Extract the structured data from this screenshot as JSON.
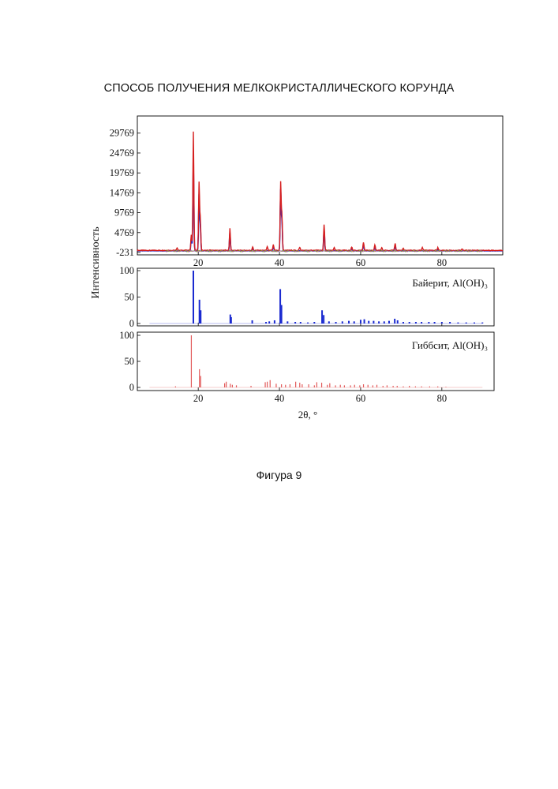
{
  "document": {
    "title": "СПОСОБ ПОЛУЧЕНИЯ МЕЛКОКРИСТАЛЛИЧЕСКОГО КОРУНДА",
    "caption": "Фигура 9"
  },
  "chart_data": {
    "type": "line",
    "xlabel": "2θ, °",
    "ylabel": "Интенсивность",
    "xlim": [
      5,
      95
    ],
    "x_ticks": [
      20,
      40,
      60,
      80
    ],
    "colors": {
      "measured": "#d62020",
      "bayerite": "#1a2ad0",
      "gibbsite": "#e25a5a",
      "minor": [
        "#2a9a2a",
        "#e0a020",
        "#8a3ab0"
      ]
    },
    "panels": [
      {
        "id": "measured",
        "ylim": [
          -231,
          31500
        ],
        "y_ticks": [
          -231,
          4769,
          9769,
          14769,
          19769,
          24769,
          29769
        ],
        "series": [
          {
            "role": "measured",
            "color": "#d62020",
            "baseline": 300,
            "peaks": [
              [
                14.8,
                700
              ],
              [
                18.3,
                4000
              ],
              [
                18.8,
                29800
              ],
              [
                20.2,
                17000
              ],
              [
                20.5,
                8000
              ],
              [
                27.8,
                5500
              ],
              [
                33.4,
                900
              ],
              [
                37.0,
                900
              ],
              [
                38.5,
                1400
              ],
              [
                40.3,
                17000
              ],
              [
                40.6,
                9000
              ],
              [
                45.0,
                800
              ],
              [
                51.0,
                6500
              ],
              [
                53.5,
                700
              ],
              [
                57.8,
                900
              ],
              [
                60.7,
                2000
              ],
              [
                63.5,
                1400
              ],
              [
                65.2,
                700
              ],
              [
                68.5,
                1800
              ],
              [
                70.5,
                500
              ],
              [
                75.2,
                700
              ],
              [
                79.0,
                700
              ],
              [
                85.0,
                400
              ]
            ]
          },
          {
            "role": "fit",
            "color": "#1a2ad0",
            "baseline": 200,
            "peaks": [
              [
                18.3,
                3200
              ],
              [
                18.8,
                22500
              ],
              [
                20.2,
                14000
              ],
              [
                20.5,
                6200
              ],
              [
                27.8,
                4500
              ],
              [
                33.4,
                600
              ],
              [
                38.5,
                1000
              ],
              [
                40.3,
                15200
              ],
              [
                40.6,
                7500
              ],
              [
                51.0,
                5200
              ],
              [
                57.8,
                600
              ],
              [
                60.7,
                1500
              ],
              [
                63.5,
                1000
              ],
              [
                68.5,
                1300
              ],
              [
                79.0,
                400
              ]
            ]
          }
        ]
      },
      {
        "id": "bayerite",
        "label": "Байерит, Al(OH)₃",
        "ylim": [
          0,
          100
        ],
        "y_ticks": [
          0,
          50,
          100
        ],
        "color": "#1a2ad0",
        "sticks": [
          [
            18.8,
            100
          ],
          [
            20.3,
            45
          ],
          [
            20.6,
            25
          ],
          [
            27.9,
            17
          ],
          [
            28.1,
            12
          ],
          [
            33.3,
            6
          ],
          [
            36.7,
            3
          ],
          [
            37.5,
            4
          ],
          [
            38.8,
            6
          ],
          [
            40.2,
            65
          ],
          [
            40.5,
            35
          ],
          [
            42.0,
            4
          ],
          [
            43.9,
            3
          ],
          [
            45.2,
            3
          ],
          [
            47.0,
            2
          ],
          [
            48.6,
            3
          ],
          [
            50.5,
            25
          ],
          [
            50.9,
            16
          ],
          [
            52.2,
            4
          ],
          [
            53.9,
            3
          ],
          [
            55.5,
            4
          ],
          [
            57.1,
            5
          ],
          [
            58.4,
            4
          ],
          [
            60.0,
            7
          ],
          [
            60.9,
            8
          ],
          [
            62.0,
            5
          ],
          [
            63.2,
            5
          ],
          [
            64.5,
            4
          ],
          [
            65.8,
            4
          ],
          [
            67.0,
            5
          ],
          [
            68.4,
            9
          ],
          [
            69.1,
            6
          ],
          [
            70.5,
            3
          ],
          [
            72.0,
            3
          ],
          [
            73.6,
            3
          ],
          [
            75.0,
            3
          ],
          [
            76.8,
            3
          ],
          [
            78.2,
            3
          ],
          [
            80.0,
            3
          ],
          [
            82.0,
            3
          ],
          [
            84.0,
            2
          ],
          [
            86.0,
            2
          ],
          [
            88.0,
            2
          ],
          [
            90.0,
            2
          ]
        ]
      },
      {
        "id": "gibbsite",
        "label": "Гиббсит, Al(OH)₃",
        "ylim": [
          0,
          100
        ],
        "y_ticks": [
          0,
          50,
          100
        ],
        "color": "#e25a5a",
        "sticks": [
          [
            14.4,
            2
          ],
          [
            18.3,
            100
          ],
          [
            20.3,
            35
          ],
          [
            20.6,
            22
          ],
          [
            26.5,
            8
          ],
          [
            26.9,
            11
          ],
          [
            27.9,
            7
          ],
          [
            28.4,
            5
          ],
          [
            29.4,
            4
          ],
          [
            33.0,
            3
          ],
          [
            36.5,
            10
          ],
          [
            37.0,
            11
          ],
          [
            37.7,
            14
          ],
          [
            39.2,
            7
          ],
          [
            40.5,
            6
          ],
          [
            41.5,
            5
          ],
          [
            42.6,
            6
          ],
          [
            44.0,
            11
          ],
          [
            45.0,
            9
          ],
          [
            45.6,
            6
          ],
          [
            47.2,
            6
          ],
          [
            48.6,
            4
          ],
          [
            49.2,
            10
          ],
          [
            50.4,
            9
          ],
          [
            51.8,
            5
          ],
          [
            52.4,
            8
          ],
          [
            53.8,
            4
          ],
          [
            55.0,
            5
          ],
          [
            56.0,
            4
          ],
          [
            57.5,
            4
          ],
          [
            58.5,
            5
          ],
          [
            59.8,
            4
          ],
          [
            60.7,
            6
          ],
          [
            61.8,
            5
          ],
          [
            63.0,
            4
          ],
          [
            64.0,
            5
          ],
          [
            65.5,
            3
          ],
          [
            66.5,
            4
          ],
          [
            68.0,
            3
          ],
          [
            69.0,
            3
          ],
          [
            70.5,
            2
          ],
          [
            72.0,
            3
          ],
          [
            73.5,
            2
          ],
          [
            75.0,
            2
          ],
          [
            77.0,
            2
          ],
          [
            79.0,
            2
          ],
          [
            81.0,
            1
          ]
        ]
      }
    ]
  }
}
